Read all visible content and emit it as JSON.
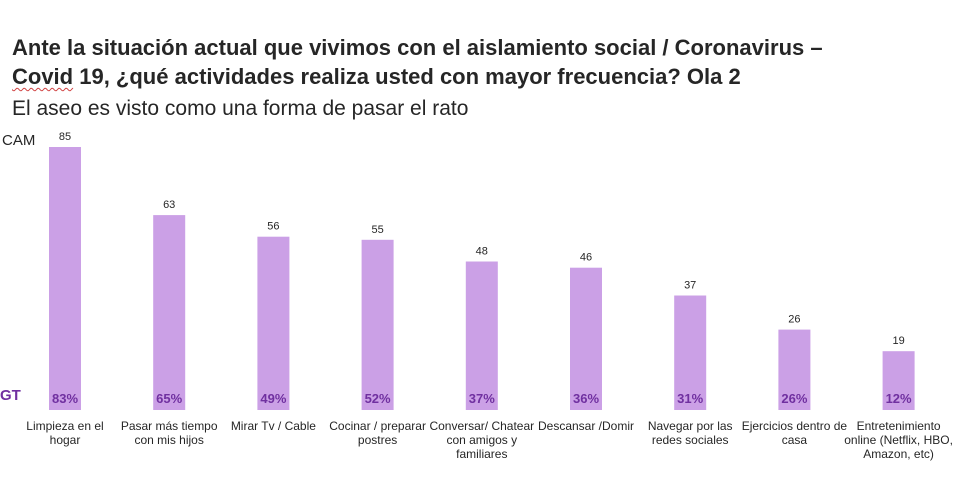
{
  "header": {
    "title_part1": "Ante la situación actual que vivimos con el aislamiento social / Coronavirus –",
    "title_word_underlined": "Covid",
    "title_part2": " 19, ¿qué actividades realiza usted con mayor frecuencia? Ola 2",
    "subtitle": "El aseo es visto como una forma de pasar el rato"
  },
  "row_labels": {
    "top": "CAM",
    "bottom": "GT"
  },
  "colors": {
    "bar": "#cba0e6",
    "gt_text": "#7030a0",
    "text": "#262626"
  },
  "chart_data": {
    "type": "bar",
    "title": "Ante la situación actual que vivimos con el aislamiento social / Coronavirus – Covid 19, ¿qué actividades realiza usted con mayor frecuencia? Ola 2",
    "subtitle": "El aseo es visto como una forma de pasar el rato",
    "xlabel": "",
    "ylabel": "",
    "ylim": [
      0,
      85
    ],
    "grid": false,
    "legend": "none",
    "categories": [
      "Limpieza en el hogar",
      "Pasar más tiempo con mis hijos",
      "Mirar Tv / Cable",
      "Cocinar / preparar postres",
      "Conversar/ Chatear con amigos y familiares",
      "Descansar /Domir",
      "Navegar por las redes sociales",
      "Ejercicios dentro de casa",
      "Entretenimiento online (Netflix, HBO, Amazon, etc)"
    ],
    "series": [
      {
        "name": "CAM",
        "values": [
          85,
          63,
          56,
          55,
          48,
          46,
          37,
          26,
          19
        ],
        "labels": [
          "85",
          "63",
          "56",
          "55",
          "48",
          "46",
          "37",
          "26",
          "19"
        ]
      },
      {
        "name": "GT",
        "values": [
          83,
          65,
          49,
          52,
          37,
          36,
          31,
          26,
          12
        ],
        "labels": [
          "83%",
          "65%",
          "49%",
          "52%",
          "37%",
          "36%",
          "31%",
          "26%",
          "12%"
        ]
      }
    ]
  }
}
